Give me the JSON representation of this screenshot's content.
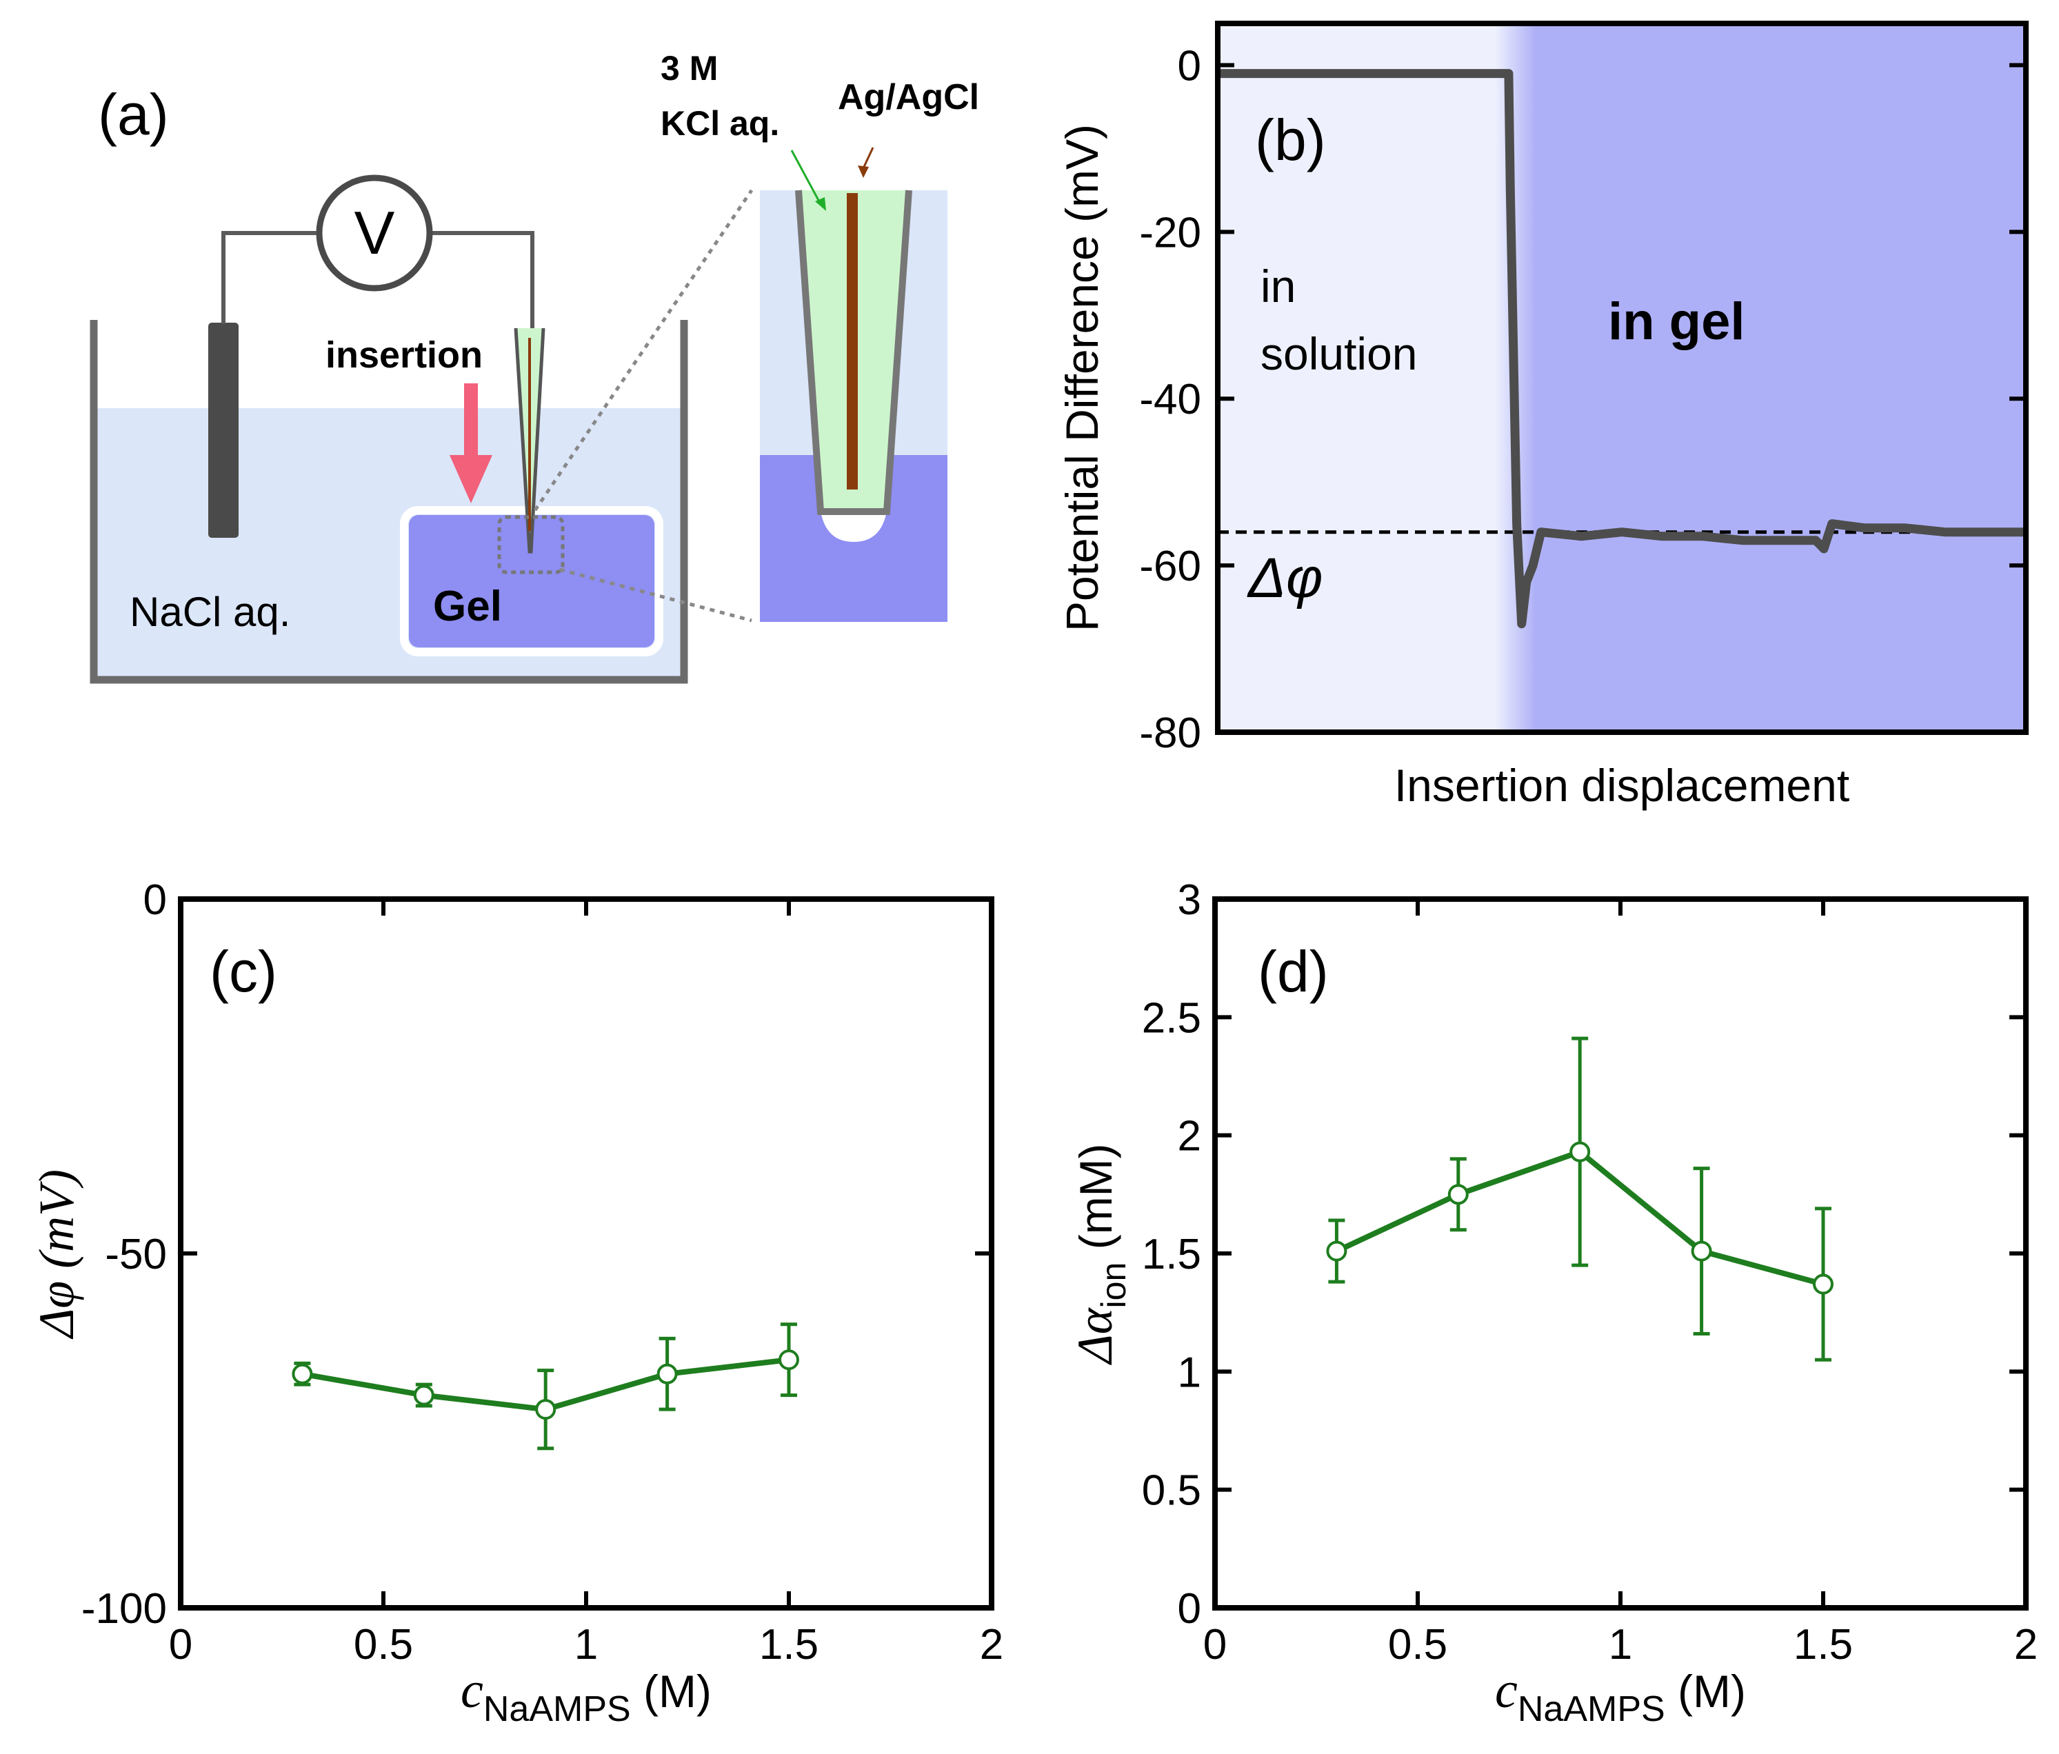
{
  "panel_a": {
    "label": "(a)",
    "voltmeter": "V",
    "insertion": "insertion",
    "solution": "NaCl aq.",
    "gel": "Gel",
    "kcl_line1": "3 M",
    "kcl_line2": "KCl aq.",
    "electrode": "Ag/AgCl",
    "colors": {
      "solution": "#dbe6f9",
      "gel": "#8e8ef3",
      "kcl": "#cdf5cd",
      "wire": "#8a3b0c",
      "insertion": "#f2607a",
      "kcl_text": "#1fae29",
      "electrode_text": "#8a3b0c"
    }
  },
  "panel_b": {
    "label": "(b)",
    "region_solution_line1": "in",
    "region_solution_line2": "solution",
    "region_gel": "in gel",
    "delta_label": "Δφ",
    "colors": {
      "solution_bg": "#eef1fd",
      "gel_bg": "#aeb0f7",
      "trace": "#4d4d4d"
    }
  },
  "chart_data": [
    {
      "id": "b",
      "type": "line",
      "title": "",
      "xlabel": "Insertion displacement",
      "ylabel": "Potential Difference (mV)",
      "ylim": [
        -80,
        5
      ],
      "yticks": [
        0,
        -20,
        -40,
        -60,
        -80
      ],
      "xticks": [],
      "x_range": [
        0,
        1
      ],
      "transition_x": 0.36,
      "series": [
        {
          "name": "potential",
          "x": [
            0,
            0.1,
            0.2,
            0.3,
            0.36,
            0.362,
            0.37,
            0.376,
            0.382,
            0.39,
            0.4,
            0.45,
            0.5,
            0.55,
            0.6,
            0.65,
            0.7,
            0.74,
            0.75,
            0.76,
            0.8,
            0.85,
            0.9,
            0.95,
            1.0
          ],
          "y": [
            -1,
            -1,
            -1,
            -1,
            -1,
            -15,
            -55,
            -67,
            -62,
            -60,
            -56,
            -56.5,
            -56,
            -56.5,
            -56.5,
            -57,
            -57,
            -57,
            -58,
            -55,
            -55.5,
            -55.5,
            -56,
            -56,
            -56
          ]
        }
      ],
      "reference_line": -56
    },
    {
      "id": "c",
      "type": "line",
      "title": "",
      "xlabel": "c",
      "xlabel_sub": "NaAMPS",
      "xlabel_unit": " (M)",
      "ylabel": "Δφ (mV)",
      "xlim": [
        0,
        2
      ],
      "ylim": [
        -100,
        0
      ],
      "xticks": [
        0,
        0.5,
        1,
        1.5,
        2
      ],
      "xtick_labels": [
        "0",
        "0.5",
        "1",
        "1.5",
        "2"
      ],
      "yticks": [
        0,
        -50,
        -100
      ],
      "ytick_labels": [
        "0",
        "-50",
        "-100"
      ],
      "series": [
        {
          "name": "Δφ",
          "x": [
            0.3,
            0.6,
            0.9,
            1.2,
            1.5
          ],
          "y": [
            -67,
            -70,
            -72,
            -67,
            -65
          ],
          "err": [
            1.5,
            1.5,
            5.5,
            5,
            5
          ]
        }
      ]
    },
    {
      "id": "d",
      "type": "line",
      "title": "",
      "xlabel": "c",
      "xlabel_sub": "NaAMPS",
      "xlabel_unit": " (M)",
      "ylabel": "Δα",
      "ylabel_sub": "ion",
      "ylabel_unit": " (mM)",
      "xlim": [
        0,
        2
      ],
      "ylim": [
        0,
        3
      ],
      "xticks": [
        0,
        0.5,
        1,
        1.5,
        2
      ],
      "xtick_labels": [
        "0",
        "0.5",
        "1",
        "1.5",
        "2"
      ],
      "yticks": [
        0,
        0.5,
        1,
        1.5,
        2,
        2.5,
        3
      ],
      "ytick_labels": [
        "0",
        "0.5",
        "1",
        "1.5",
        "2",
        "2.5",
        "3"
      ],
      "series": [
        {
          "name": "Δα_ion",
          "x": [
            0.3,
            0.6,
            0.9,
            1.2,
            1.5
          ],
          "y": [
            1.51,
            1.75,
            1.93,
            1.51,
            1.37
          ],
          "err": [
            0.13,
            0.15,
            0.48,
            0.35,
            0.32
          ]
        }
      ]
    }
  ],
  "panel_c": {
    "label": "(c)"
  },
  "panel_d": {
    "label": "(d)"
  },
  "series_color": "#1e7d1e"
}
